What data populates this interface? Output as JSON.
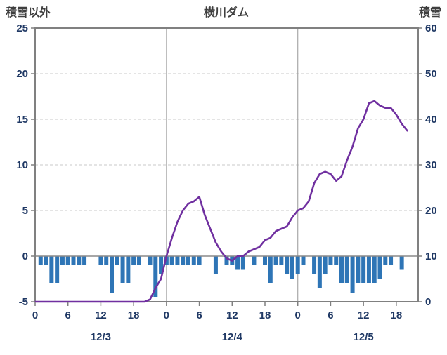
{
  "header": {
    "left_axis_title": "積雪以外",
    "title": "横川ダム",
    "right_axis_title": "積雪"
  },
  "chart_data": {
    "type": "bar",
    "subtype": "mixed-bar-line",
    "title": "横川ダム",
    "left_axis": {
      "label": "積雪以外",
      "min": -5,
      "max": 25,
      "ticks": [
        25,
        20,
        15,
        10,
        5,
        0,
        -5
      ]
    },
    "right_axis": {
      "label": "積雪",
      "min": 0,
      "max": 60,
      "ticks": [
        60,
        50,
        40,
        30,
        20,
        10,
        0
      ]
    },
    "x_axis": {
      "hours_domain": [
        0,
        70
      ],
      "tick_hours": [
        0,
        6,
        12,
        18,
        24,
        30,
        36,
        42,
        48,
        54,
        60,
        66
      ],
      "tick_labels": [
        "0",
        "6",
        "12",
        "18",
        "0",
        "6",
        "12",
        "18",
        "0",
        "6",
        "12",
        "18"
      ],
      "date_labels": [
        "12/3",
        "12/4",
        "12/5"
      ],
      "date_center_hours": [
        12,
        36,
        60
      ]
    },
    "grid": {
      "dashed_left_values": [
        20,
        15,
        10,
        5
      ],
      "zero_line_left_value": 0,
      "day_boundary_hours": [
        24,
        48
      ]
    },
    "series": [
      {
        "name": "積雪以外",
        "type": "bar",
        "axis": "left",
        "direction": "down",
        "color": "#2e75b6",
        "values": [
          0,
          1,
          1,
          3,
          3,
          1,
          1,
          1,
          1,
          1,
          0,
          0,
          1,
          1,
          4,
          1,
          3,
          3,
          1,
          1,
          0,
          1,
          4.5,
          2,
          1,
          1,
          1,
          1,
          1,
          1,
          1,
          0,
          0,
          2,
          0,
          1,
          1,
          1.5,
          1.5,
          0,
          1,
          0,
          1,
          3,
          1,
          1,
          2,
          2.5,
          2,
          1,
          0,
          2,
          3.5,
          2,
          1,
          1,
          3,
          3,
          4,
          3,
          3,
          3,
          3,
          2.5,
          1,
          1,
          0,
          1.5,
          0
        ]
      },
      {
        "name": "積雪",
        "type": "line",
        "axis": "right",
        "color": "#7030a0",
        "values": [
          0,
          0,
          0,
          0,
          0,
          0,
          0,
          0,
          0,
          0,
          0,
          0,
          0,
          0,
          0,
          0,
          0,
          0,
          0,
          0,
          0,
          0.5,
          3,
          5,
          10,
          14,
          17.5,
          20,
          21.5,
          22,
          23,
          19,
          16,
          13,
          11,
          9.5,
          9,
          10,
          10,
          11,
          11.5,
          12,
          13.5,
          14,
          15.5,
          16,
          16.5,
          18.5,
          20,
          20.5,
          22,
          26,
          28,
          28.5,
          28,
          26.5,
          27.5,
          31,
          34,
          38,
          40,
          43.5,
          44,
          43,
          42.5,
          42.5,
          41,
          39,
          37.5
        ]
      }
    ],
    "colors": {
      "border": "#808080",
      "grid": "#c9c9c9",
      "zero_line": "#8a8a8a",
      "day_line": "#a8a8a8",
      "tick_text": "#1f3864",
      "title_text": "#3f3f3f"
    }
  }
}
